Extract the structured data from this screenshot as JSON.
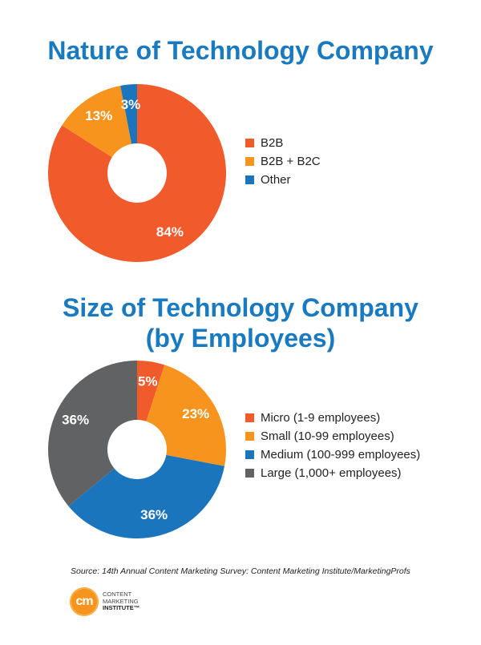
{
  "chart_data": [
    {
      "type": "pie",
      "title": "Nature of Technology Company",
      "categories": [
        "B2B",
        "B2B + B2C",
        "Other"
      ],
      "values": [
        84,
        13,
        3
      ],
      "labels": [
        "84%",
        "13%",
        "3%"
      ],
      "colors": [
        "#f15a2b",
        "#f7941d",
        "#1b75bc"
      ],
      "legend_position": "right"
    },
    {
      "type": "pie",
      "title": "Size of Technology Company",
      "subtitle": "(by Employees)",
      "categories": [
        "Micro (1-9 employees)",
        "Small (10-99 employees)",
        "Medium (100-999 employees)",
        "Large (1,000+ employees)"
      ],
      "values": [
        5,
        23,
        36,
        36
      ],
      "labels": [
        "5%",
        "23%",
        "36%",
        "36%"
      ],
      "colors": [
        "#f15a2b",
        "#f7941d",
        "#1b75bc",
        "#616263"
      ],
      "legend_position": "right"
    }
  ],
  "footer": {
    "source": "Source: 14th Annual Content Marketing Survey: Content Marketing Institute/MarketingProfs",
    "logo_badge": "cm",
    "logo_lines": [
      "CONTENT",
      "MARKETING",
      "INSTITUTE™"
    ],
    "logo_color": "#f7941d"
  }
}
